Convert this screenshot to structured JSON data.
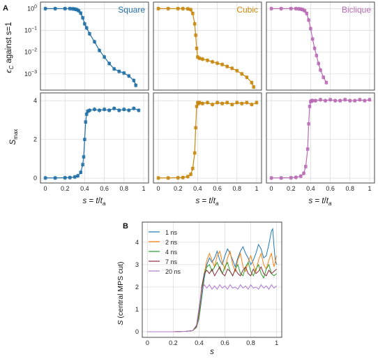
{
  "panel_labels": {
    "a": "A",
    "b": "B"
  },
  "chart_data": [
    {
      "type": "scatter",
      "panel": "A",
      "columns": [
        {
          "name": "Square",
          "color": "#1f6fa6"
        },
        {
          "name": "Cubic",
          "color": "#c8860a"
        },
        {
          "name": "Biclique",
          "color": "#b86bb5"
        }
      ],
      "xlabel": "s = t/t_a",
      "xlabel_parts": {
        "s": "s",
        "eq": " = ",
        "t": "t",
        "slash": "/",
        "ta": "t",
        "a": "a"
      },
      "x_ticks": [
        "0",
        "0.2",
        "0.4",
        "0.6",
        "0.8",
        "1"
      ],
      "xlim": [
        -0.05,
        1.05
      ],
      "rows": [
        {
          "metric": "epsilon_c",
          "ylabel": "ϵ_C against s=1",
          "ylabel_parts": {
            "eps": "ϵ",
            "c": "C",
            "rest": " against s=1"
          },
          "yscale": "log",
          "ylim": [
            0.00018,
            2.0
          ],
          "y_ticks": [
            {
              "base": "10",
              "exp": "0",
              "value": 1
            },
            {
              "base": "10",
              "exp": "−1",
              "value": 0.1
            },
            {
              "base": "10",
              "exp": "−2",
              "value": 0.01
            },
            {
              "base": "10",
              "exp": "−3",
              "value": 0.001
            }
          ],
          "series": [
            {
              "name": "Square",
              "x": [
                0,
                0.1,
                0.2,
                0.25,
                0.28,
                0.3,
                0.32,
                0.34,
                0.36,
                0.38,
                0.4,
                0.42,
                0.45,
                0.5,
                0.55,
                0.6,
                0.65,
                0.7,
                0.75,
                0.8,
                0.85,
                0.9,
                0.92
              ],
              "y": [
                1.0,
                1.0,
                1.0,
                1.0,
                0.98,
                0.95,
                0.9,
                0.8,
                0.62,
                0.38,
                0.2,
                0.13,
                0.07,
                0.03,
                0.012,
                0.006,
                0.003,
                0.0017,
                0.0013,
                0.0011,
                0.0008,
                0.0005,
                0.0003
              ]
            },
            {
              "name": "Cubic",
              "x": [
                0,
                0.1,
                0.2,
                0.25,
                0.3,
                0.33,
                0.35,
                0.37,
                0.38,
                0.39,
                0.4,
                0.42,
                0.45,
                0.5,
                0.55,
                0.6,
                0.65,
                0.7,
                0.75,
                0.8,
                0.85,
                0.9,
                0.95,
                0.97
              ],
              "y": [
                1.0,
                1.0,
                1.0,
                1.0,
                0.98,
                0.9,
                0.6,
                0.2,
                0.06,
                0.015,
                0.006,
                0.0052,
                0.0048,
                0.0042,
                0.0036,
                0.0031,
                0.0027,
                0.0022,
                0.0018,
                0.0014,
                0.001,
                0.0007,
                0.0004,
                0.00025
              ]
            },
            {
              "name": "Biclique",
              "x": [
                0,
                0.1,
                0.2,
                0.25,
                0.28,
                0.3,
                0.32,
                0.34,
                0.36,
                0.38,
                0.4,
                0.42,
                0.44,
                0.46,
                0.48,
                0.5,
                0.53,
                0.56
              ],
              "y": [
                1.0,
                1.0,
                1.0,
                1.0,
                0.98,
                0.95,
                0.9,
                0.8,
                0.6,
                0.3,
                0.12,
                0.04,
                0.015,
                0.007,
                0.003,
                0.0015,
                0.0007,
                0.0004
              ]
            }
          ]
        },
        {
          "metric": "S_max",
          "ylabel": "S_max",
          "ylabel_parts": {
            "s": "S",
            "sub": "max"
          },
          "yscale": "linear",
          "ylim": [
            -0.25,
            4.4
          ],
          "y_ticks": [
            "0",
            "2",
            "4"
          ],
          "series": [
            {
              "name": "Square",
              "x": [
                0,
                0.1,
                0.2,
                0.25,
                0.3,
                0.33,
                0.36,
                0.38,
                0.39,
                0.4,
                0.41,
                0.42,
                0.43,
                0.45,
                0.5,
                0.55,
                0.6,
                0.65,
                0.7,
                0.75,
                0.8,
                0.85,
                0.9,
                0.95
              ],
              "y": [
                0.01,
                0.01,
                0.02,
                0.03,
                0.06,
                0.12,
                0.3,
                0.7,
                1.1,
                2.0,
                2.9,
                3.3,
                3.45,
                3.5,
                3.55,
                3.5,
                3.55,
                3.5,
                3.6,
                3.5,
                3.55,
                3.5,
                3.6,
                3.5
              ]
            },
            {
              "name": "Cubic",
              "x": [
                0,
                0.1,
                0.2,
                0.25,
                0.3,
                0.33,
                0.35,
                0.37,
                0.38,
                0.39,
                0.4,
                0.41,
                0.42,
                0.45,
                0.5,
                0.55,
                0.6,
                0.65,
                0.7,
                0.75,
                0.8,
                0.85,
                0.9,
                0.95,
                1.0
              ],
              "y": [
                0.01,
                0.01,
                0.02,
                0.03,
                0.08,
                0.2,
                0.5,
                1.3,
                2.6,
                3.7,
                3.9,
                3.85,
                3.9,
                3.85,
                3.9,
                3.8,
                3.9,
                3.85,
                3.9,
                3.8,
                3.9,
                3.85,
                3.9,
                3.8,
                3.9
              ]
            },
            {
              "name": "Biclique",
              "x": [
                0,
                0.1,
                0.2,
                0.25,
                0.3,
                0.33,
                0.35,
                0.37,
                0.38,
                0.39,
                0.4,
                0.41,
                0.42,
                0.45,
                0.5,
                0.55,
                0.6,
                0.65,
                0.7,
                0.75,
                0.8,
                0.85,
                0.9,
                0.95,
                1.0
              ],
              "y": [
                0.01,
                0.01,
                0.02,
                0.04,
                0.1,
                0.25,
                0.6,
                1.5,
                2.8,
                3.7,
                3.95,
                4.0,
                4.0,
                4.0,
                4.05,
                4.0,
                4.05,
                4.0,
                4.0,
                4.05,
                4.0,
                4.0,
                4.05,
                4.0,
                4.05
              ]
            }
          ]
        }
      ]
    },
    {
      "type": "line",
      "panel": "B",
      "xlabel": "s",
      "ylabel": "S (central MPS cut)",
      "ylabel_parts": {
        "s": "S",
        "rest": " (central MPS cut)"
      },
      "xlim": [
        -0.04,
        1.04
      ],
      "ylim": [
        -0.25,
        4.9
      ],
      "x_ticks": [
        "0",
        "0.2",
        "0.4",
        "0.6",
        "0.8",
        "1"
      ],
      "y_ticks": [
        "0",
        "1",
        "2",
        "3",
        "4"
      ],
      "legend": "top-left",
      "series": [
        {
          "name": "1 ns",
          "color": "#1f77b4",
          "x": [
            0,
            0.1,
            0.2,
            0.3,
            0.35,
            0.38,
            0.4,
            0.42,
            0.44,
            0.46,
            0.48,
            0.5,
            0.52,
            0.54,
            0.56,
            0.58,
            0.6,
            0.62,
            0.64,
            0.66,
            0.68,
            0.7,
            0.72,
            0.74,
            0.76,
            0.78,
            0.8,
            0.82,
            0.84,
            0.86,
            0.88,
            0.9,
            0.92,
            0.94,
            0.96,
            0.97,
            0.98,
            0.99,
            1.0
          ],
          "y": [
            0,
            0,
            0,
            0.02,
            0.05,
            0.2,
            0.6,
            1.5,
            2.4,
            3.0,
            3.3,
            3.1,
            3.3,
            3.6,
            3.2,
            3.0,
            3.4,
            3.7,
            3.5,
            3.2,
            2.9,
            3.3,
            3.6,
            3.8,
            3.5,
            3.3,
            3.0,
            3.2,
            3.5,
            3.9,
            3.7,
            3.3,
            3.4,
            3.9,
            4.5,
            4.6,
            3.8,
            3.2,
            3.0
          ]
        },
        {
          "name": "2 ns",
          "color": "#ff7f0e",
          "x": [
            0,
            0.1,
            0.2,
            0.3,
            0.35,
            0.38,
            0.4,
            0.42,
            0.44,
            0.46,
            0.48,
            0.5,
            0.52,
            0.54,
            0.56,
            0.58,
            0.6,
            0.62,
            0.64,
            0.66,
            0.68,
            0.7,
            0.72,
            0.74,
            0.76,
            0.78,
            0.8,
            0.82,
            0.84,
            0.86,
            0.88,
            0.9,
            0.92,
            0.94,
            0.96,
            0.98,
            1.0
          ],
          "y": [
            0,
            0,
            0,
            0.02,
            0.05,
            0.2,
            0.7,
            1.7,
            2.6,
            3.2,
            3.5,
            3.2,
            2.9,
            3.4,
            3.6,
            3.1,
            2.8,
            3.3,
            3.6,
            3.0,
            2.7,
            3.2,
            3.5,
            2.9,
            2.7,
            3.1,
            3.4,
            3.0,
            2.7,
            3.2,
            3.5,
            3.0,
            2.8,
            3.2,
            3.5,
            2.9,
            3.4
          ]
        },
        {
          "name": "4 ns",
          "color": "#2ca02c",
          "x": [
            0,
            0.1,
            0.2,
            0.3,
            0.35,
            0.38,
            0.4,
            0.42,
            0.44,
            0.46,
            0.48,
            0.5,
            0.52,
            0.54,
            0.56,
            0.58,
            0.6,
            0.62,
            0.64,
            0.66,
            0.68,
            0.7,
            0.72,
            0.74,
            0.76,
            0.78,
            0.8,
            0.82,
            0.84,
            0.86,
            0.88,
            0.9,
            0.92,
            0.94,
            0.96,
            0.98,
            1.0
          ],
          "y": [
            0,
            0,
            0,
            0.02,
            0.05,
            0.2,
            0.8,
            1.8,
            2.6,
            2.9,
            3.0,
            2.7,
            2.9,
            3.1,
            2.8,
            2.6,
            2.9,
            3.1,
            2.7,
            2.5,
            2.8,
            3.0,
            2.6,
            2.5,
            2.9,
            3.1,
            2.7,
            2.5,
            2.8,
            3.0,
            2.6,
            2.4,
            2.8,
            3.0,
            2.6,
            2.5,
            2.6
          ]
        },
        {
          "name": "7 ns",
          "color": "#8c2f39",
          "x": [
            0,
            0.1,
            0.2,
            0.3,
            0.35,
            0.38,
            0.4,
            0.42,
            0.44,
            0.46,
            0.48,
            0.5,
            0.52,
            0.54,
            0.56,
            0.58,
            0.6,
            0.62,
            0.64,
            0.66,
            0.68,
            0.7,
            0.72,
            0.74,
            0.76,
            0.78,
            0.8,
            0.82,
            0.84,
            0.86,
            0.88,
            0.9,
            0.92,
            0.94,
            0.96,
            0.98,
            1.0
          ],
          "y": [
            0,
            0,
            0,
            0.02,
            0.05,
            0.25,
            1.0,
            2.0,
            2.6,
            2.75,
            2.6,
            2.8,
            2.5,
            2.7,
            2.9,
            2.6,
            2.5,
            2.8,
            2.7,
            2.5,
            2.8,
            2.6,
            2.5,
            2.75,
            2.9,
            2.6,
            2.5,
            2.8,
            2.6,
            2.7,
            2.9,
            2.6,
            2.5,
            2.75,
            2.6,
            2.7,
            2.8
          ]
        },
        {
          "name": "20 ns",
          "color": "#b07ad0",
          "x": [
            0,
            0.1,
            0.2,
            0.3,
            0.35,
            0.38,
            0.4,
            0.42,
            0.44,
            0.46,
            0.48,
            0.5,
            0.52,
            0.54,
            0.56,
            0.58,
            0.6,
            0.62,
            0.64,
            0.66,
            0.68,
            0.7,
            0.72,
            0.74,
            0.76,
            0.78,
            0.8,
            0.82,
            0.84,
            0.86,
            0.88,
            0.9,
            0.92,
            0.94,
            0.96,
            0.98,
            1.0
          ],
          "y": [
            0,
            0,
            0,
            0.02,
            0.05,
            0.3,
            1.1,
            1.9,
            2.1,
            1.95,
            2.1,
            1.9,
            2.05,
            1.9,
            2.1,
            1.95,
            2.05,
            1.9,
            2.1,
            1.95,
            2.0,
            1.9,
            2.1,
            1.95,
            2.05,
            1.9,
            2.1,
            1.95,
            2.0,
            1.9,
            2.1,
            1.95,
            2.05,
            1.9,
            2.1,
            1.95,
            2.05
          ]
        }
      ]
    }
  ]
}
